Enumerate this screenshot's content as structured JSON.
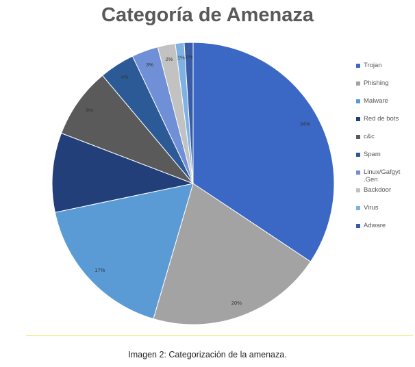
{
  "chart_data": {
    "type": "pie",
    "title": "Categoría de Amenaza",
    "legend_position": "right",
    "categories": [
      "Trojan",
      "Phishing",
      "Malware",
      "Red de bots",
      "c&c",
      "Spam",
      "Linux/Gafgyt .Gen",
      "Backdoor",
      "Virus",
      "Adware"
    ],
    "values": [
      34,
      20,
      17,
      9,
      8,
      4,
      3,
      2,
      1,
      1
    ],
    "slice_labels": [
      "34%",
      "20%",
      "17%",
      "",
      "8%",
      "4%",
      "3%",
      "2%",
      "1%",
      "1%"
    ],
    "colors": [
      "#3b68c4",
      "#a3a3a3",
      "#5b9bd5",
      "#223f7a",
      "#5a5a5a",
      "#2c5a96",
      "#6f8fd6",
      "#c2c2c2",
      "#7fb2e3",
      "#3a5ca8"
    ]
  },
  "caption": "Imagen 2: Categorización de la amenaza."
}
